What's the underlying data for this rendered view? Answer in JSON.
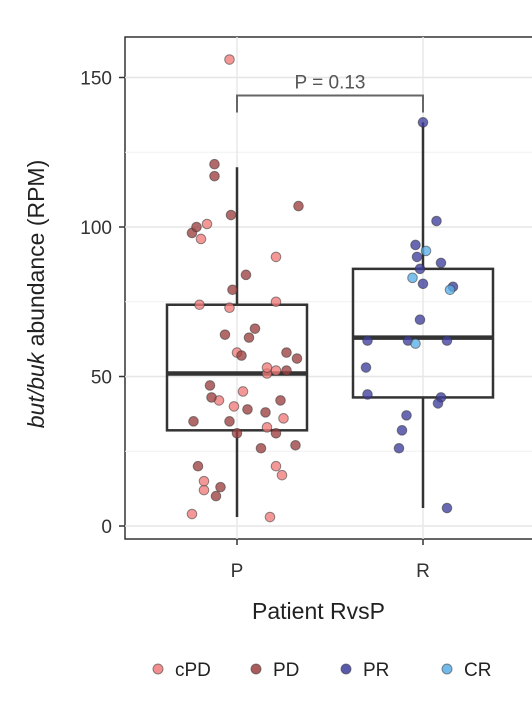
{
  "chart_data": {
    "type": "box",
    "xlabel": "Patient RvsP",
    "ylabel_parts": [
      "but/buk",
      " abundance (RPM)"
    ],
    "ylim": [
      -5,
      163
    ],
    "yticks": [
      0,
      50,
      100,
      150
    ],
    "grid": true,
    "categories": [
      "P",
      "R"
    ],
    "boxes": [
      {
        "category": "P",
        "min": 3,
        "q1": 32,
        "median": 51,
        "q3": 74,
        "max": 120
      },
      {
        "category": "R",
        "min": 6,
        "q1": 43,
        "median": 63,
        "q3": 86,
        "max": 135
      }
    ],
    "annotation": {
      "text": "P = 0.13",
      "y": 144,
      "between": [
        "P",
        "R"
      ]
    },
    "legend": {
      "placement": "bottom",
      "entries": [
        {
          "key": "cPD",
          "label": "cPD",
          "color": "#f07a7a"
        },
        {
          "key": "PD",
          "label": "PD",
          "color": "#9b3f3f"
        },
        {
          "key": "PR",
          "label": "PR",
          "color": "#3d3d9e"
        },
        {
          "key": "CR",
          "label": "CR",
          "color": "#5aaee8"
        }
      ]
    },
    "points": [
      {
        "group": "P",
        "series": "cPD",
        "offset": -0.3,
        "y": 4
      },
      {
        "group": "P",
        "series": "cPD",
        "offset": -0.22,
        "y": 12
      },
      {
        "group": "P",
        "series": "cPD",
        "offset": -0.22,
        "y": 15
      },
      {
        "group": "P",
        "series": "cPD",
        "offset": 0.22,
        "y": 3
      },
      {
        "group": "P",
        "series": "cPD",
        "offset": 0.26,
        "y": 20
      },
      {
        "group": "P",
        "series": "cPD",
        "offset": 0.3,
        "y": 17
      },
      {
        "group": "P",
        "series": "cPD",
        "offset": 0.2,
        "y": 33
      },
      {
        "group": "P",
        "series": "cPD",
        "offset": 0.31,
        "y": 36
      },
      {
        "group": "P",
        "series": "cPD",
        "offset": -0.02,
        "y": 40
      },
      {
        "group": "P",
        "series": "cPD",
        "offset": 0.04,
        "y": 45
      },
      {
        "group": "P",
        "series": "cPD",
        "offset": -0.12,
        "y": 42
      },
      {
        "group": "P",
        "series": "cPD",
        "offset": 0.2,
        "y": 51
      },
      {
        "group": "P",
        "series": "cPD",
        "offset": 0.26,
        "y": 52
      },
      {
        "group": "P",
        "series": "cPD",
        "offset": 0.2,
        "y": 53
      },
      {
        "group": "P",
        "series": "cPD",
        "offset": 0.0,
        "y": 58
      },
      {
        "group": "P",
        "series": "cPD",
        "offset": -0.25,
        "y": 74
      },
      {
        "group": "P",
        "series": "cPD",
        "offset": -0.05,
        "y": 73
      },
      {
        "group": "P",
        "series": "cPD",
        "offset": 0.26,
        "y": 75
      },
      {
        "group": "P",
        "series": "cPD",
        "offset": 0.26,
        "y": 90
      },
      {
        "group": "P",
        "series": "cPD",
        "offset": -0.24,
        "y": 96
      },
      {
        "group": "P",
        "series": "cPD",
        "offset": -0.2,
        "y": 101
      },
      {
        "group": "P",
        "series": "cPD",
        "offset": -0.05,
        "y": 156
      },
      {
        "group": "P",
        "series": "PD",
        "offset": -0.14,
        "y": 10
      },
      {
        "group": "P",
        "series": "PD",
        "offset": -0.11,
        "y": 13
      },
      {
        "group": "P",
        "series": "PD",
        "offset": -0.26,
        "y": 20
      },
      {
        "group": "P",
        "series": "PD",
        "offset": 0.16,
        "y": 26
      },
      {
        "group": "P",
        "series": "PD",
        "offset": 0.0,
        "y": 31
      },
      {
        "group": "P",
        "series": "PD",
        "offset": 0.26,
        "y": 31
      },
      {
        "group": "P",
        "series": "PD",
        "offset": 0.39,
        "y": 27
      },
      {
        "group": "P",
        "series": "PD",
        "offset": -0.29,
        "y": 35
      },
      {
        "group": "P",
        "series": "PD",
        "offset": -0.05,
        "y": 35
      },
      {
        "group": "P",
        "series": "PD",
        "offset": -0.17,
        "y": 43
      },
      {
        "group": "P",
        "series": "PD",
        "offset": -0.18,
        "y": 47
      },
      {
        "group": "P",
        "series": "PD",
        "offset": 0.07,
        "y": 39
      },
      {
        "group": "P",
        "series": "PD",
        "offset": 0.19,
        "y": 38
      },
      {
        "group": "P",
        "series": "PD",
        "offset": 0.29,
        "y": 42
      },
      {
        "group": "P",
        "series": "PD",
        "offset": 0.33,
        "y": 52
      },
      {
        "group": "P",
        "series": "PD",
        "offset": 0.33,
        "y": 58
      },
      {
        "group": "P",
        "series": "PD",
        "offset": 0.4,
        "y": 56
      },
      {
        "group": "P",
        "series": "PD",
        "offset": 0.03,
        "y": 57
      },
      {
        "group": "P",
        "series": "PD",
        "offset": -0.08,
        "y": 64
      },
      {
        "group": "P",
        "series": "PD",
        "offset": 0.08,
        "y": 63
      },
      {
        "group": "P",
        "series": "PD",
        "offset": 0.12,
        "y": 66
      },
      {
        "group": "P",
        "series": "PD",
        "offset": -0.03,
        "y": 79
      },
      {
        "group": "P",
        "series": "PD",
        "offset": 0.06,
        "y": 84
      },
      {
        "group": "P",
        "series": "PD",
        "offset": -0.04,
        "y": 104
      },
      {
        "group": "P",
        "series": "PD",
        "offset": 0.41,
        "y": 107
      },
      {
        "group": "P",
        "series": "PD",
        "offset": -0.3,
        "y": 98
      },
      {
        "group": "P",
        "series": "PD",
        "offset": -0.27,
        "y": 100
      },
      {
        "group": "P",
        "series": "PD",
        "offset": -0.15,
        "y": 117
      },
      {
        "group": "P",
        "series": "PD",
        "offset": -0.15,
        "y": 121
      },
      {
        "group": "R",
        "series": "PR",
        "offset": 0.0,
        "y": 135
      },
      {
        "group": "R",
        "series": "PR",
        "offset": 0.09,
        "y": 102
      },
      {
        "group": "R",
        "series": "PR",
        "offset": -0.05,
        "y": 94
      },
      {
        "group": "R",
        "series": "PR",
        "offset": -0.04,
        "y": 90
      },
      {
        "group": "R",
        "series": "PR",
        "offset": 0.12,
        "y": 88
      },
      {
        "group": "R",
        "series": "PR",
        "offset": -0.02,
        "y": 86
      },
      {
        "group": "R",
        "series": "PR",
        "offset": 0.0,
        "y": 81
      },
      {
        "group": "R",
        "series": "PR",
        "offset": 0.2,
        "y": 80
      },
      {
        "group": "R",
        "series": "PR",
        "offset": -0.02,
        "y": 69
      },
      {
        "group": "R",
        "series": "PR",
        "offset": -0.37,
        "y": 62
      },
      {
        "group": "R",
        "series": "PR",
        "offset": -0.1,
        "y": 62
      },
      {
        "group": "R",
        "series": "PR",
        "offset": 0.16,
        "y": 62
      },
      {
        "group": "R",
        "series": "PR",
        "offset": -0.38,
        "y": 53
      },
      {
        "group": "R",
        "series": "PR",
        "offset": -0.37,
        "y": 44
      },
      {
        "group": "R",
        "series": "PR",
        "offset": 0.12,
        "y": 43
      },
      {
        "group": "R",
        "series": "PR",
        "offset": 0.1,
        "y": 41
      },
      {
        "group": "R",
        "series": "PR",
        "offset": -0.11,
        "y": 37
      },
      {
        "group": "R",
        "series": "PR",
        "offset": -0.14,
        "y": 32
      },
      {
        "group": "R",
        "series": "PR",
        "offset": -0.16,
        "y": 26
      },
      {
        "group": "R",
        "series": "PR",
        "offset": 0.16,
        "y": 6
      },
      {
        "group": "R",
        "series": "CR",
        "offset": 0.02,
        "y": 92
      },
      {
        "group": "R",
        "series": "CR",
        "offset": -0.07,
        "y": 83
      },
      {
        "group": "R",
        "series": "CR",
        "offset": 0.18,
        "y": 79
      },
      {
        "group": "R",
        "series": "CR",
        "offset": -0.05,
        "y": 61
      }
    ]
  }
}
